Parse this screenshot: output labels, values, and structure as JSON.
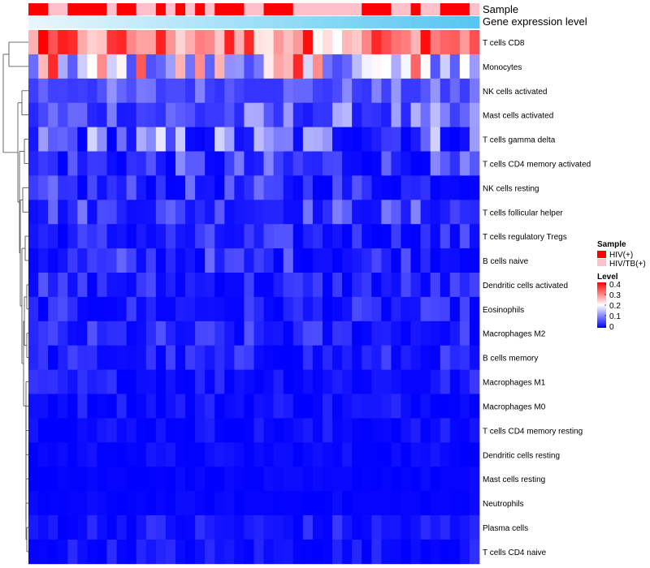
{
  "chart_data": {
    "type": "heatmap",
    "title": "",
    "annotations": [
      {
        "name": "Sample",
        "legend_title": "Sample",
        "levels": [
          "HIV(+)",
          "HIV/TB(+)"
        ],
        "colors": [
          "#ff0000",
          "#ffc0cb"
        ],
        "values": "0011000010011010101000110001111111000110110001"
      },
      {
        "name": "Gene expression level",
        "type": "gradient",
        "colors": [
          "#e6f6fd",
          "#56c7f0"
        ]
      }
    ],
    "rows": [
      "T cells CD8",
      "Monocytes",
      "NK cells activated",
      "Mast cells activated",
      "T cells gamma delta",
      "T cells CD4 memory activated",
      "NK cells resting",
      "T cells follicular helper",
      "T cells regulatory  Tregs",
      "B cells naive",
      "Dendritic cells activated",
      "Eosinophils",
      "Macrophages M2",
      "B cells memory",
      "Macrophages M1",
      "Macrophages M0",
      "T cells CD4 memory resting",
      "Dendritic cells resting",
      "Mast cells resting",
      "Neutrophils",
      "Plasma cells",
      "T cells CD4 naive"
    ],
    "n_columns": 46,
    "row_level_ranges": [
      [
        0.2,
        0.4
      ],
      [
        0.06,
        0.37
      ],
      [
        0.04,
        0.12
      ],
      [
        0.02,
        0.15
      ],
      [
        0.0,
        0.2
      ],
      [
        0.0,
        0.11
      ],
      [
        0.0,
        0.09
      ],
      [
        0.01,
        0.11
      ],
      [
        0.0,
        0.07
      ],
      [
        0.0,
        0.09
      ],
      [
        0.0,
        0.07
      ],
      [
        0.0,
        0.06
      ],
      [
        0.0,
        0.07
      ],
      [
        0.0,
        0.06
      ],
      [
        0.0,
        0.05
      ],
      [
        0.0,
        0.04
      ],
      [
        0.0,
        0.03
      ],
      [
        0.0,
        0.02
      ],
      [
        0.0,
        0.01
      ],
      [
        0.0,
        0.01
      ],
      [
        0.0,
        0.05
      ],
      [
        0.0,
        0.04
      ]
    ],
    "colorscale": {
      "low": "#0000ff",
      "mid": "#ffffff",
      "high": "#ff0000",
      "mid_value": 0.2,
      "min": 0,
      "max": 0.4
    },
    "legend": {
      "sample_title": "Sample",
      "level_title": "Level",
      "ticks": [
        "0.4",
        "0.3",
        "0.2",
        "0.1",
        "0"
      ]
    }
  }
}
